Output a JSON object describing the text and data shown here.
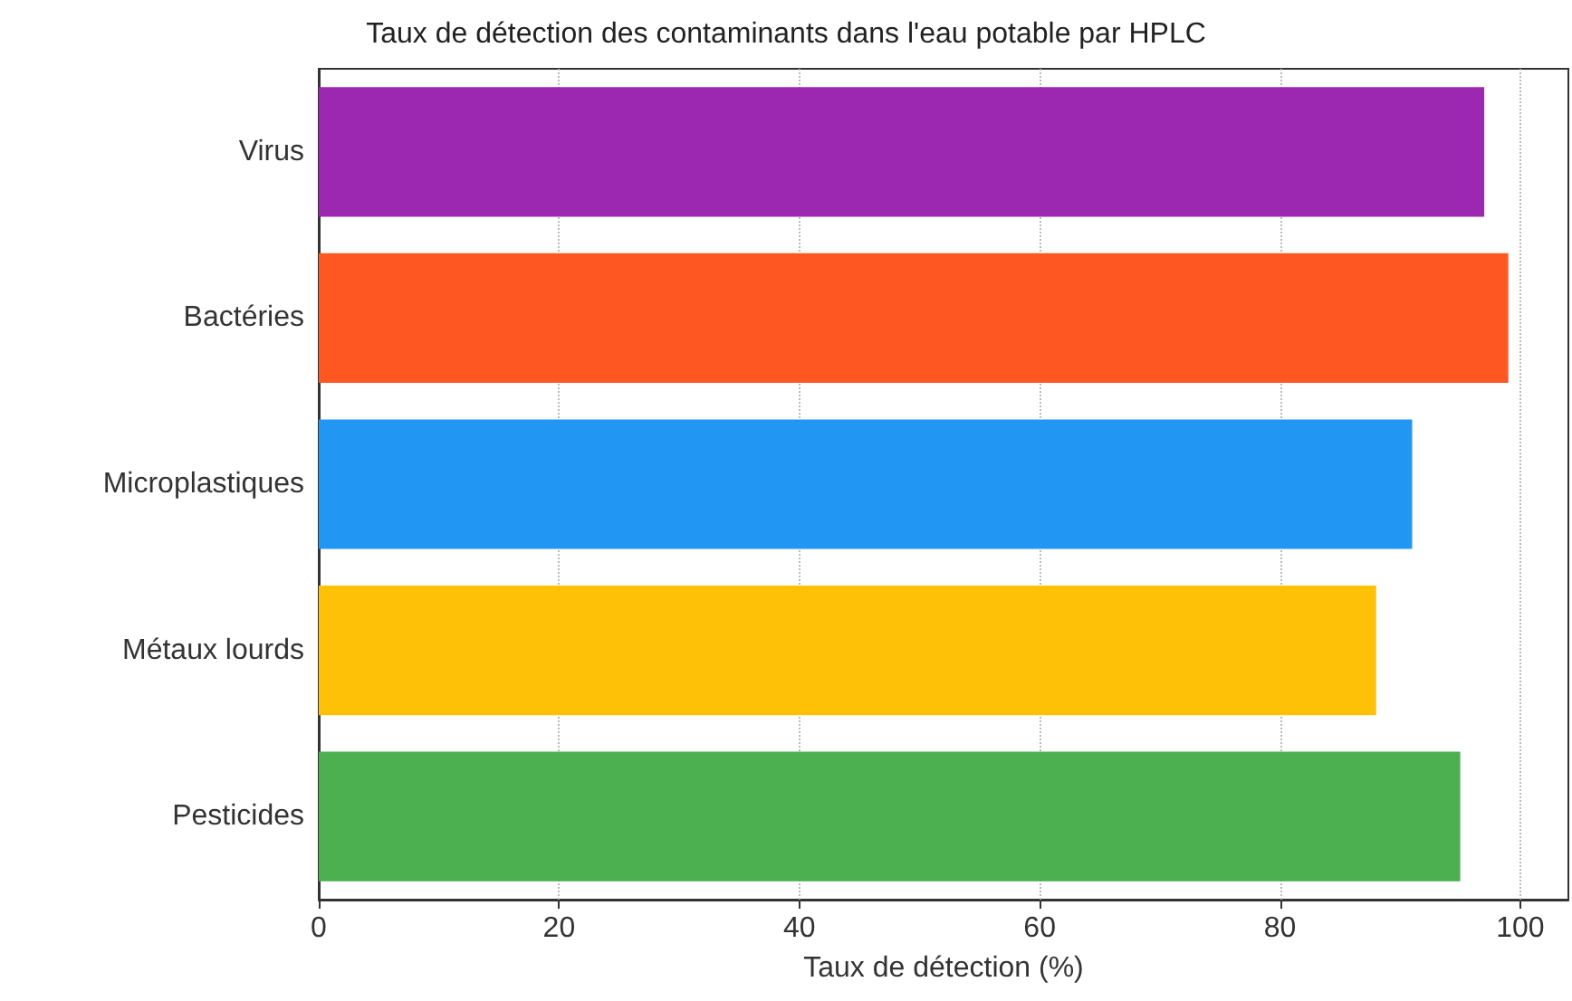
{
  "chart_data": {
    "type": "bar",
    "orientation": "horizontal",
    "title": "Taux de détection des contaminants dans l'eau potable par HPLC",
    "xlabel": "Taux de détection (%)",
    "categories": [
      "Virus",
      "Bactéries",
      "Microplastiques",
      "Métaux lourds",
      "Pesticides"
    ],
    "values": [
      97,
      99,
      91,
      88,
      95
    ],
    "colors": [
      "#9c27b0",
      "#ff5722",
      "#2196f3",
      "#ffc107",
      "#4caf50"
    ],
    "xlim": [
      0,
      104
    ],
    "xticks": [
      0,
      20,
      40,
      60,
      80,
      100
    ],
    "grid": "x"
  }
}
